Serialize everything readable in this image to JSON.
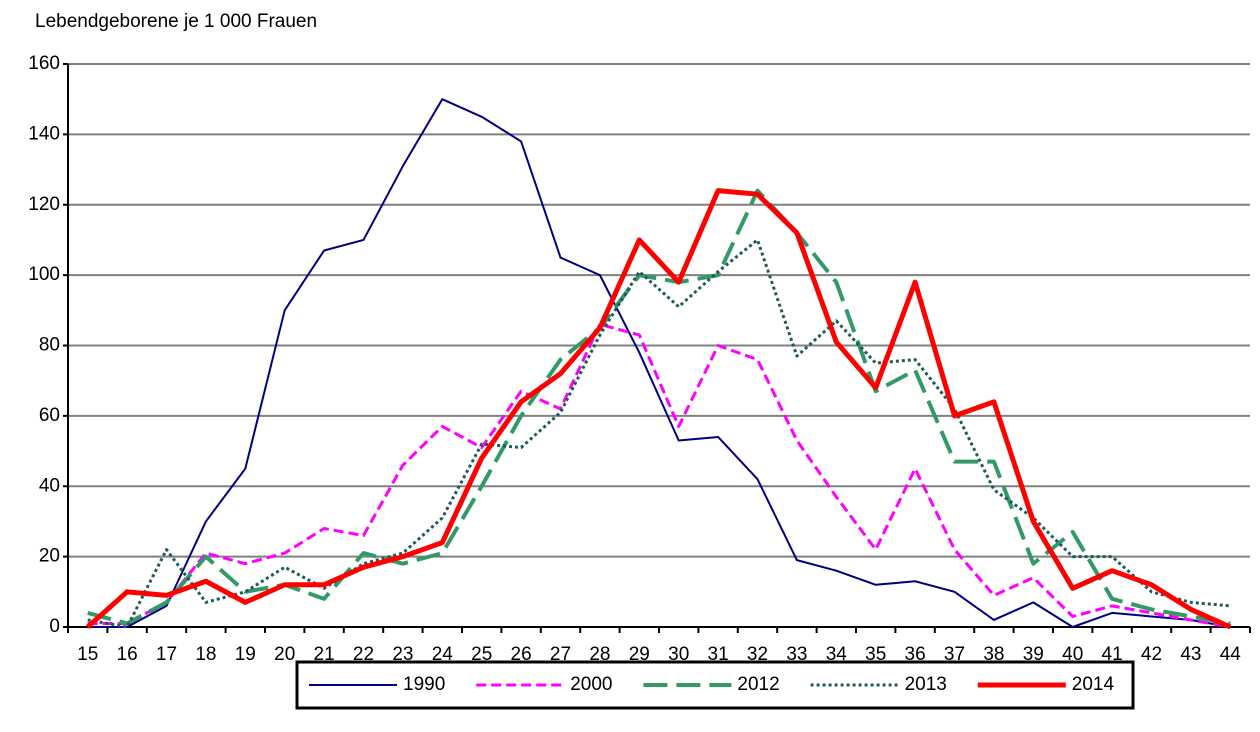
{
  "chart_data": {
    "type": "line",
    "title": "Lebendgeborene je 1 000 Frauen",
    "categories": [
      "15",
      "16",
      "17",
      "18",
      "19",
      "20",
      "21",
      "22",
      "23",
      "24",
      "25",
      "26",
      "27",
      "28",
      "29",
      "30",
      "31",
      "32",
      "33",
      "34",
      "35",
      "36",
      "37",
      "38",
      "39",
      "40",
      "41",
      "42",
      "43",
      "44"
    ],
    "ylim": [
      0,
      160
    ],
    "yticks": [
      0,
      20,
      40,
      60,
      80,
      100,
      120,
      140,
      160
    ],
    "grid": true,
    "legend": "bottom",
    "series": [
      {
        "name": "1990",
        "color": "#000080",
        "dash": "solid",
        "width": 2,
        "values": [
          0,
          0,
          6,
          30,
          45,
          90,
          107,
          110,
          131,
          150,
          145,
          138,
          105,
          100,
          78,
          53,
          54,
          42,
          19,
          16,
          12,
          13,
          10,
          2,
          7,
          0,
          4,
          3,
          2,
          0
        ]
      },
      {
        "name": "2000",
        "color": "#ff00ff",
        "dash": "short",
        "width": 3,
        "values": [
          1,
          1,
          7,
          21,
          18,
          21,
          28,
          26,
          46,
          57,
          51,
          67,
          62,
          86,
          83,
          57,
          80,
          76,
          53,
          37,
          22,
          45,
          22,
          9,
          14,
          3,
          6,
          4,
          2,
          0
        ]
      },
      {
        "name": "2012",
        "color": "#339966",
        "dash": "long",
        "width": 4,
        "values": [
          4,
          1,
          7,
          20,
          10,
          12,
          8,
          21,
          18,
          21,
          40,
          60,
          76,
          85,
          100,
          98,
          100,
          124,
          112,
          98,
          67,
          73,
          47,
          47,
          18,
          27,
          8,
          5,
          3,
          1
        ]
      },
      {
        "name": "2013",
        "color": "#1f5a5a",
        "dash": "dot",
        "width": 3,
        "values": [
          2,
          0,
          22,
          7,
          10,
          17,
          11,
          18,
          21,
          31,
          52,
          51,
          61,
          83,
          101,
          91,
          101,
          110,
          77,
          87,
          75,
          76,
          62,
          39,
          31,
          20,
          20,
          10,
          7,
          6
        ]
      },
      {
        "name": "2014",
        "color": "#ff0000",
        "dash": "solid",
        "width": 5,
        "values": [
          0,
          10,
          9,
          13,
          7,
          12,
          12,
          17,
          20,
          24,
          48,
          64,
          72,
          85,
          110,
          98,
          124,
          123,
          112,
          81,
          68,
          98,
          60,
          64,
          30,
          11,
          16,
          12,
          5,
          0
        ]
      }
    ]
  }
}
